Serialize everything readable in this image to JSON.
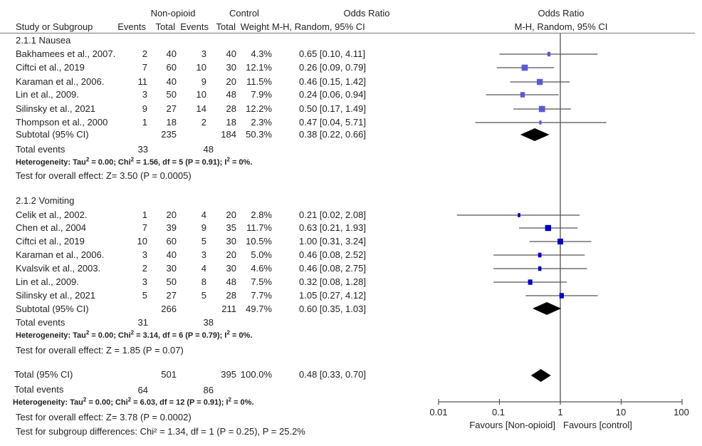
{
  "header": {
    "study_label": "Study or Subgroup",
    "group1": "Non-opioid",
    "group2": "Control",
    "events": "Events",
    "total": "Total",
    "weight": "Weight",
    "or_title": "Odds Ratio",
    "or_method": "M-H, Random,  95% CI",
    "plot_title": "Odds Ratio",
    "plot_method": "M-H, Random, 95% CI"
  },
  "subgroups": [
    {
      "title": "2.1.1 Nausea",
      "studies": [
        {
          "name": "Bakhamees et al., 2007.",
          "e1": "2",
          "n1": "40",
          "e2": "3",
          "n2": "40",
          "weight": "4.3%",
          "ci_text": "0.65 [0.10, 4.11]"
        },
        {
          "name": "Ciftci et al., 2019",
          "e1": "7",
          "n1": "60",
          "e2": "10",
          "n2": "30",
          "weight": "12.1%",
          "ci_text": "0.26 [0.09, 0.79]"
        },
        {
          "name": "Karaman et al., 2006.",
          "e1": "11",
          "n1": "40",
          "e2": "9",
          "n2": "20",
          "weight": "11.5%",
          "ci_text": "0.46 [0.15, 1.42]"
        },
        {
          "name": "Lin et al., 2009.",
          "e1": "3",
          "n1": "50",
          "e2": "10",
          "n2": "48",
          "weight": "7.9%",
          "ci_text": "0.24 [0.06, 0.94]"
        },
        {
          "name": "Silinsky et al., 2021",
          "e1": "9",
          "n1": "27",
          "e2": "14",
          "n2": "28",
          "weight": "12.2%",
          "ci_text": "0.50 [0.17, 1.49]"
        },
        {
          "name": "Thompson et al., 2000",
          "e1": "1",
          "n1": "18",
          "e2": "2",
          "n2": "18",
          "weight": "2.3%",
          "ci_text": "0.47 [0.04, 5.71]"
        }
      ],
      "subtotal": {
        "label": "Subtotal (95% CI)",
        "n1": "235",
        "n2": "184",
        "weight": "50.3%",
        "ci_text": "0.38 [0.22, 0.66]"
      },
      "total_events": {
        "label": "Total events",
        "e1": "33",
        "e2": "48"
      },
      "heterogeneity": "Heterogeneity: Tau² = 0.00; Chi² = 1.56, df = 5 (P = 0.91); I² = 0%.",
      "overall": "Test for overall effect:   Z=  3.50 (P = 0.0005)"
    },
    {
      "title": "2.1.2 Vomiting",
      "studies": [
        {
          "name": "Celik et al., 2002.",
          "e1": "1",
          "n1": "20",
          "e2": "4",
          "n2": "20",
          "weight": "2.8%",
          "ci_text": "0.21 [0.02, 2.08]"
        },
        {
          "name": "Chen et al., 2004",
          "e1": "7",
          "n1": "39",
          "e2": "9",
          "n2": "35",
          "weight": "11.7%",
          "ci_text": "0.63 [0.21, 1.93]"
        },
        {
          "name": "Ciftci et al., 2019",
          "e1": "10",
          "n1": "60",
          "e2": "5",
          "n2": "30",
          "weight": "10.5%",
          "ci_text": "1.00 [0.31, 3.24]"
        },
        {
          "name": "Karaman et al., 2006.",
          "e1": "3",
          "n1": "40",
          "e2": "3",
          "n2": "20",
          "weight": "5.0%",
          "ci_text": "0.46 [0.08, 2.52]"
        },
        {
          "name": "Kvalsvik et al., 2003.",
          "e1": "2",
          "n1": "30",
          "e2": "4",
          "n2": "30",
          "weight": "4.6%",
          "ci_text": "0.46 [0.08, 2.75]"
        },
        {
          "name": "Lin et al., 2009.",
          "e1": "3",
          "n1": "50",
          "e2": "8",
          "n2": "48",
          "weight": "7.5%",
          "ci_text": "0.32 [0.08, 1.28]"
        },
        {
          "name": "Silinsky et al., 2021",
          "e1": "5",
          "n1": "27",
          "e2": "5",
          "n2": "28",
          "weight": "7.7%",
          "ci_text": "1.05 [0.27, 4.12]"
        }
      ],
      "subtotal": {
        "label": "Subtotal (95% CI)",
        "n1": "266",
        "n2": "211",
        "weight": "49.7%",
        "ci_text": "0.60 [0.35, 1.03]"
      },
      "total_events": {
        "label": "Total events",
        "e1": "31",
        "e2": "38"
      },
      "heterogeneity": "Heterogeneity: Tau² = 0.00; Chi² = 3.14, df = 6 (P = 0.79); I² = 0%.",
      "overall": "Test for overall effect:  Z =  1.85  (P =  0.07)"
    }
  ],
  "total": {
    "label": "Total (95% CI)",
    "n1": "501",
    "n2": "395",
    "weight": "100.0%",
    "ci_text": "0.48 [0.33, 0.70]",
    "events_label": "Total events",
    "e1": "64",
    "e2": "86",
    "heterogeneity": "Heterogeneity: Tau² = 0.00; Chi² = 6.03, df = 12 (P = 0.91); I² = 0%.",
    "overall": "Test for overall effect:   Z=   3.78 (P =  0.0002)",
    "subgroup_diff": "Test for subgroup differences:     Chi² = 1.34,   df = 1 (P  = 0.25),  P =  25.2%"
  },
  "chart_data": {
    "type": "forest",
    "x_scale": "log",
    "xlim": [
      0.01,
      100
    ],
    "x_ticks": [
      "0.01",
      "0.1",
      "1",
      "10",
      "100"
    ],
    "null_line": 1,
    "favours_left": "Favours [Non-opioid]",
    "favours_right": "Favours [control]",
    "square_color_nausea": "#5a5ad6",
    "square_color_vomiting": "#0000c8",
    "diamond_color": "#000000",
    "nausea": [
      {
        "or": 0.65,
        "lo": 0.1,
        "hi": 4.11,
        "w": 4.3
      },
      {
        "or": 0.26,
        "lo": 0.09,
        "hi": 0.79,
        "w": 12.1
      },
      {
        "or": 0.46,
        "lo": 0.15,
        "hi": 1.42,
        "w": 11.5
      },
      {
        "or": 0.24,
        "lo": 0.06,
        "hi": 0.94,
        "w": 7.9
      },
      {
        "or": 0.5,
        "lo": 0.17,
        "hi": 1.49,
        "w": 12.2
      },
      {
        "or": 0.47,
        "lo": 0.04,
        "hi": 5.71,
        "w": 2.3
      }
    ],
    "nausea_subtotal": {
      "or": 0.38,
      "lo": 0.22,
      "hi": 0.66
    },
    "vomiting": [
      {
        "or": 0.21,
        "lo": 0.02,
        "hi": 2.08,
        "w": 2.8
      },
      {
        "or": 0.63,
        "lo": 0.21,
        "hi": 1.93,
        "w": 11.7
      },
      {
        "or": 1.0,
        "lo": 0.31,
        "hi": 3.24,
        "w": 10.5
      },
      {
        "or": 0.46,
        "lo": 0.08,
        "hi": 2.52,
        "w": 5.0
      },
      {
        "or": 0.46,
        "lo": 0.08,
        "hi": 2.75,
        "w": 4.6
      },
      {
        "or": 0.32,
        "lo": 0.08,
        "hi": 1.28,
        "w": 7.5
      },
      {
        "or": 1.05,
        "lo": 0.27,
        "hi": 4.12,
        "w": 7.7
      }
    ],
    "vomiting_subtotal": {
      "or": 0.6,
      "lo": 0.35,
      "hi": 1.03
    },
    "overall": {
      "or": 0.48,
      "lo": 0.33,
      "hi": 0.7
    }
  }
}
